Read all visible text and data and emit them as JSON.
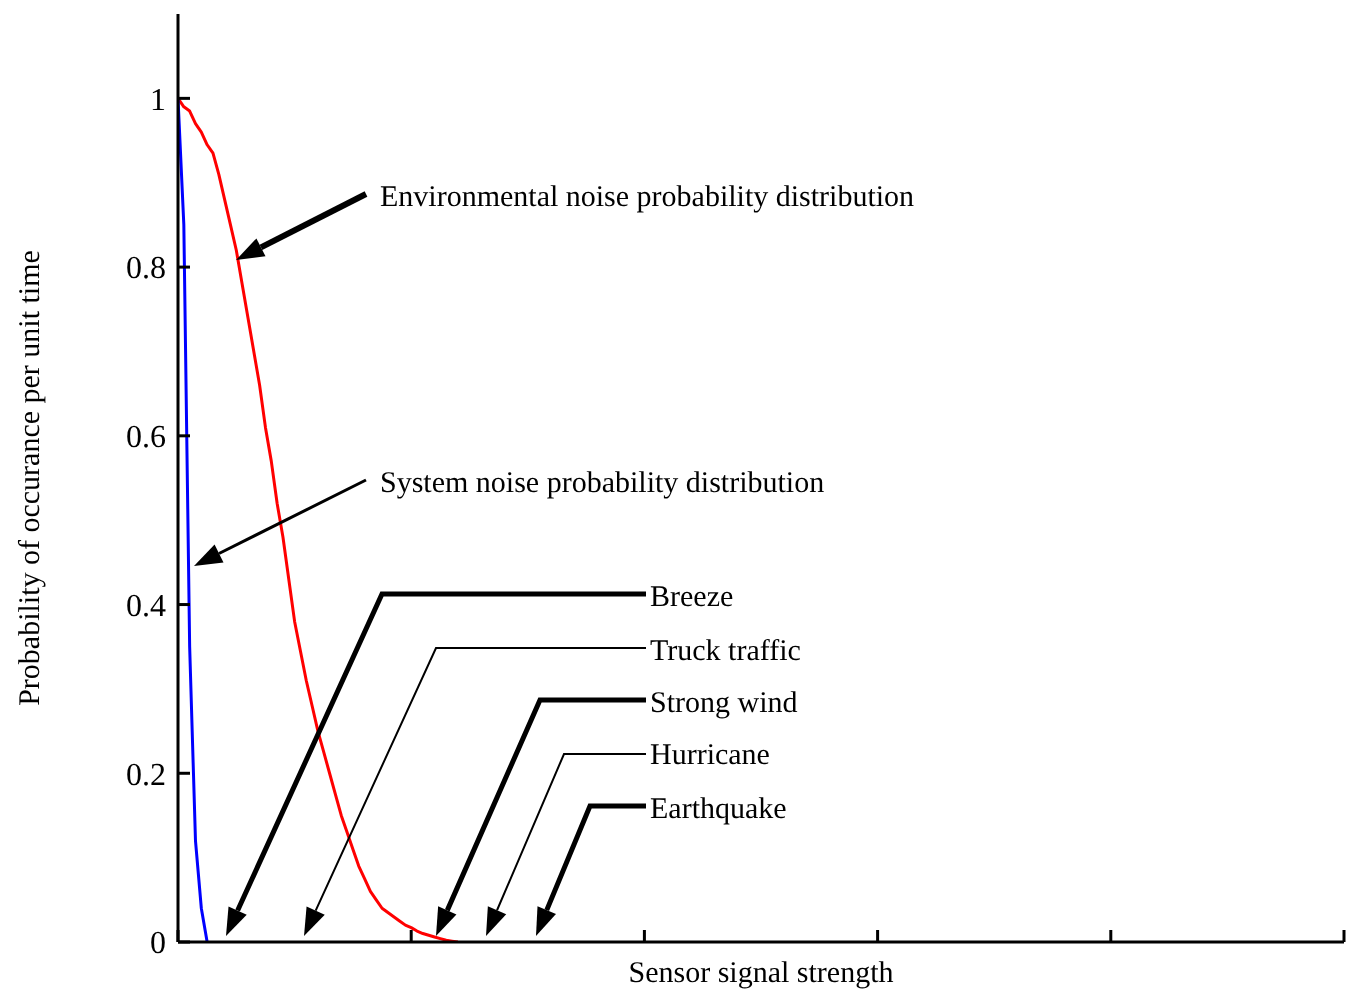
{
  "chart_data": {
    "type": "line",
    "xlabel": "Sensor signal strength",
    "ylabel": "Probability of occurance per unit time",
    "categories": [
      null,
      null,
      null,
      null,
      null,
      null,
      null,
      null,
      null,
      null,
      null,
      null,
      null,
      null,
      null,
      null,
      null,
      null,
      null,
      null,
      null,
      null,
      null,
      null,
      null,
      null,
      null,
      null,
      null,
      null,
      null,
      null,
      null,
      null,
      null,
      null,
      null,
      null,
      null,
      null,
      null,
      null,
      null,
      null,
      null,
      null,
      null,
      null,
      null,
      null,
      null,
      null,
      null,
      null,
      null,
      null,
      null,
      null,
      null,
      null,
      null,
      null,
      null,
      null,
      null,
      null,
      null,
      null,
      null,
      null,
      null,
      null,
      null,
      null,
      null,
      null,
      null,
      null,
      null,
      null,
      null,
      null,
      null,
      null,
      null,
      null,
      null,
      null,
      null,
      null,
      null,
      null,
      null,
      null,
      null,
      null,
      null,
      null,
      null,
      null,
      null,
      null,
      null,
      null,
      null,
      null,
      null,
      null,
      null,
      null,
      null,
      null,
      null,
      null,
      null,
      null,
      null,
      null,
      null,
      null,
      null,
      null,
      null,
      null,
      null,
      null,
      null,
      null,
      null,
      null,
      null,
      null,
      null,
      null,
      null,
      null,
      null,
      null,
      null,
      null,
      null,
      null,
      null,
      null,
      null,
      null,
      null,
      null,
      null,
      null,
      null,
      null,
      null,
      null,
      null,
      null,
      null,
      null,
      null,
      null,
      null,
      null,
      null,
      null,
      null,
      null,
      null,
      null,
      null,
      null,
      null,
      null,
      null,
      null,
      null,
      null,
      null,
      null,
      null,
      null,
      null,
      null,
      null,
      null,
      null,
      null,
      null,
      null,
      null,
      null,
      null,
      null,
      null,
      null,
      null,
      null,
      null,
      null,
      null,
      null,
      null
    ],
    "series": [
      {
        "color": "#ff0000",
        "values": [
          1,
          0.99,
          0.985,
          0.97,
          0.96,
          0.945,
          0.935,
          0.91,
          0.88,
          0.85,
          0.82,
          0.78,
          0.74,
          0.7,
          0.66,
          0.61,
          0.57,
          0.52,
          0.48,
          0.43,
          0.38,
          0.345,
          0.31,
          0.28,
          0.25,
          0.225,
          0.2,
          0.175,
          0.15,
          0.13,
          0.11,
          0.09,
          0.075,
          0.06,
          0.05,
          0.04,
          0.035,
          0.03,
          0.025,
          0.02,
          0.017,
          0.013,
          0.01,
          0.008,
          0.006,
          0.004,
          0.002,
          0.001,
          0,
          null,
          null,
          null,
          null,
          null,
          null,
          null,
          null,
          null,
          null,
          null,
          null,
          null,
          null,
          null,
          null,
          null,
          null,
          null,
          null,
          null,
          null,
          null,
          null,
          null,
          null,
          null,
          null,
          null,
          null,
          null,
          null,
          null,
          null,
          null,
          null,
          null,
          null,
          null,
          null,
          null,
          null,
          null,
          null,
          null,
          null,
          null,
          null,
          null,
          null,
          null,
          null,
          null,
          null,
          null,
          null,
          null,
          null,
          null,
          null,
          null,
          null,
          null,
          null,
          null,
          null,
          null,
          null,
          null,
          null,
          null,
          null,
          null,
          null,
          null,
          null,
          null,
          null,
          null,
          null,
          null,
          null,
          null,
          null,
          null,
          null,
          null,
          null,
          null,
          null,
          null,
          null,
          null,
          null,
          null,
          null,
          null,
          null,
          null,
          null,
          null,
          null,
          null,
          null,
          null,
          null,
          null,
          null,
          null,
          null,
          null,
          null,
          null,
          null,
          null,
          null,
          null,
          null,
          null,
          null,
          null,
          null,
          null,
          null,
          null,
          null,
          null,
          null,
          null,
          null,
          null,
          null,
          null,
          null,
          null,
          null,
          null,
          null,
          null,
          null,
          null,
          null,
          null,
          null,
          null,
          null,
          null,
          null,
          null,
          null,
          null,
          null
        ]
      },
      {
        "color": "#0000ff",
        "values": [
          1,
          0.85,
          0.35,
          0.12,
          0.04,
          0,
          null,
          null,
          null,
          null,
          null,
          null,
          null,
          null,
          null,
          null,
          null,
          null,
          null,
          null,
          null,
          null,
          null,
          null,
          null,
          null,
          null,
          null,
          null,
          null,
          null,
          null,
          null,
          null,
          null,
          null,
          null,
          null,
          null,
          null,
          null,
          null,
          null,
          null,
          null,
          null,
          null,
          null,
          null,
          null,
          null,
          null,
          null,
          null,
          null,
          null,
          null,
          null,
          null,
          null,
          null,
          null,
          null,
          null,
          null,
          null,
          null,
          null,
          null,
          null,
          null,
          null,
          null,
          null,
          null,
          null,
          null,
          null,
          null,
          null,
          null,
          null,
          null,
          null,
          null,
          null,
          null,
          null,
          null,
          null,
          null,
          null,
          null,
          null,
          null,
          null,
          null,
          null,
          null,
          null,
          null,
          null,
          null,
          null,
          null,
          null,
          null,
          null,
          null,
          null,
          null,
          null,
          null,
          null,
          null,
          null,
          null,
          null,
          null,
          null,
          null,
          null,
          null,
          null,
          null,
          null,
          null,
          null,
          null,
          null,
          null,
          null,
          null,
          null,
          null,
          null,
          null,
          null,
          null,
          null,
          null,
          null,
          null,
          null,
          null,
          null,
          null,
          null,
          null,
          null,
          null,
          null,
          null,
          null,
          null,
          null,
          null,
          null,
          null,
          null,
          null,
          null,
          null,
          null,
          null,
          null,
          null,
          null,
          null,
          null,
          null,
          null,
          null,
          null,
          null,
          null,
          null,
          null,
          null,
          null,
          null,
          null,
          null,
          null,
          null,
          null,
          null,
          null,
          null,
          null,
          null,
          null,
          null,
          null,
          null,
          null,
          null,
          null,
          null,
          null,
          null
        ]
      }
    ],
    "ylim": [
      0,
      1.1
    ],
    "yticks": [
      0,
      0.2,
      0.4,
      0.6,
      0.8,
      1
    ],
    "tick_labels": "y",
    "grid": false,
    "annotations": [
      "Environmental noise probability distribution",
      "System noise probability distribution",
      "Breeze",
      "Truck traffic",
      "Strong wind",
      "Hurricane",
      "Earthquake"
    ]
  }
}
